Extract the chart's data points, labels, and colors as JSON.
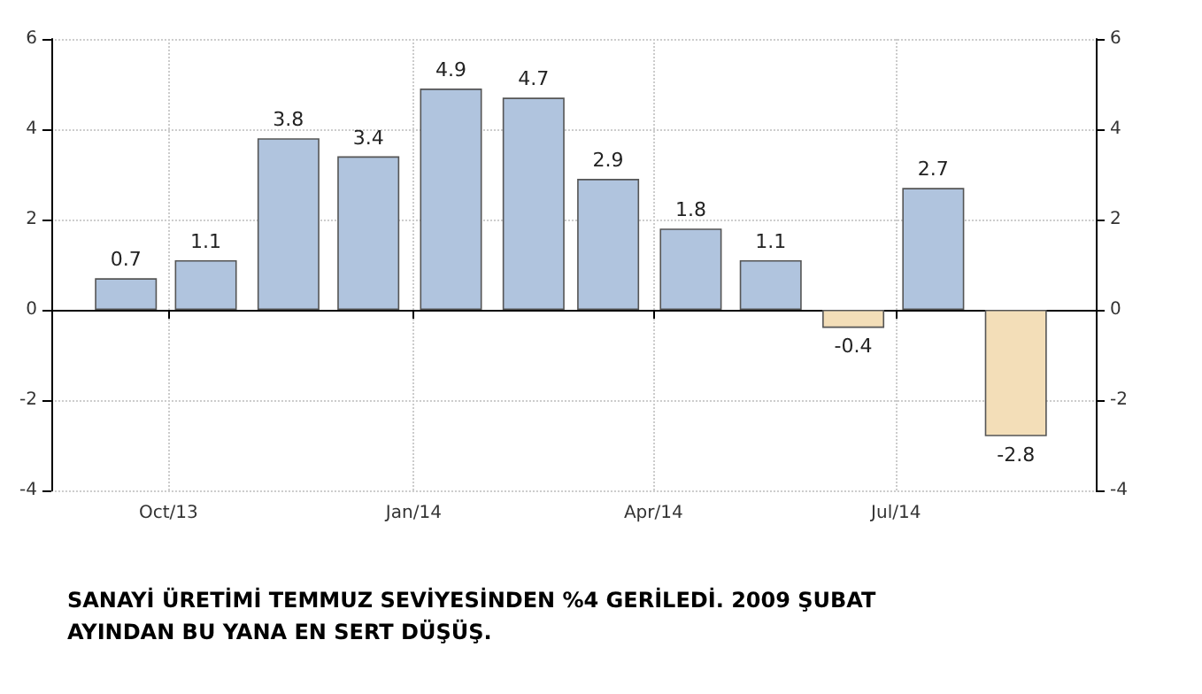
{
  "chart_data": {
    "type": "bar",
    "x": [
      "2013-09-15",
      "2013-10-15",
      "2013-11-15",
      "2013-12-15",
      "2014-01-15",
      "2014-02-15",
      "2014-03-15",
      "2014-04-15",
      "2014-05-15",
      "2014-06-15",
      "2014-07-15",
      "2014-08-15"
    ],
    "values": [
      0.7,
      1.1,
      3.8,
      3.4,
      4.9,
      4.7,
      2.9,
      1.8,
      1.1,
      -0.4,
      2.7,
      -2.8
    ],
    "colors": [
      "#b0c4de",
      "#b0c4de",
      "#b0c4de",
      "#b0c4de",
      "#b0c4de",
      "#b0c4de",
      "#b0c4de",
      "#b0c4de",
      "#b0c4de",
      "#f3deb8",
      "#b0c4de",
      "#f3deb8"
    ],
    "data_labels": true,
    "xlim": [
      "2013-08-18",
      "2014-09-14"
    ],
    "xticks": [
      {
        "value": "2013-10-01",
        "label": "Oct/13"
      },
      {
        "value": "2014-01-01",
        "label": "Jan/14"
      },
      {
        "value": "2014-04-01",
        "label": "Apr/14"
      },
      {
        "value": "2014-07-01",
        "label": "Jul/14"
      }
    ],
    "ylim": [
      -4,
      6
    ],
    "yticks": [
      -4,
      -2,
      0,
      2,
      4,
      6
    ],
    "y2lim": [
      -4,
      6
    ],
    "y2ticks": [
      -4,
      -2,
      0,
      2,
      4,
      6
    ],
    "grid": true,
    "annotations": [
      "SANAYİ ÜRETİMİ TEMMUZ SEVİYESİNDEN %4 GERİLEDİ. 2009 ŞUBAT AYINDAN BU YANA EN SERT DÜŞÜŞ."
    ]
  }
}
